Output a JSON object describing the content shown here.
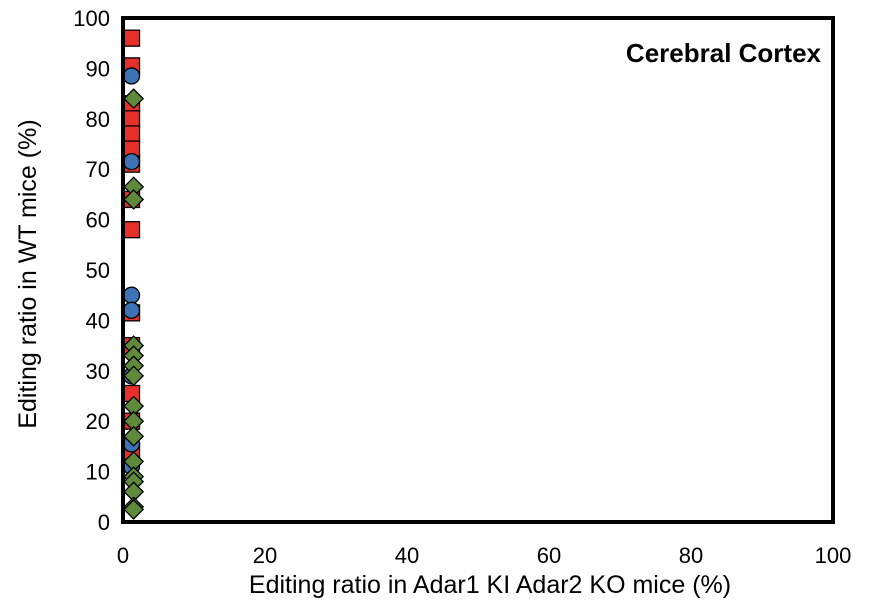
{
  "chart_data": {
    "type": "scatter",
    "title": "Cerebral Cortex",
    "xlabel": "Editing ratio in Adar1 KI Adar2 KO mice (%)",
    "ylabel": "Editing ratio in WT mice (%)",
    "xlim": [
      0,
      100
    ],
    "ylim": [
      0,
      100
    ],
    "x_ticks": [
      "0",
      "20",
      "40",
      "60",
      "80",
      "100"
    ],
    "y_ticks": [
      "0",
      "10",
      "20",
      "30",
      "40",
      "50",
      "60",
      "70",
      "80",
      "90",
      "100"
    ],
    "grid": false,
    "legend": "none",
    "series": [
      {
        "marker": "square",
        "color": "#e8302a",
        "x": [
          1.2,
          1.2,
          1.2,
          1.2,
          1.2,
          1.2,
          1.2,
          1.2,
          1.2,
          1.2,
          1.2,
          1.2,
          1.2,
          1.2
        ],
        "y": [
          96,
          90.5,
          83,
          80,
          77,
          74,
          71,
          64,
          58,
          41.5,
          35,
          25.5,
          20,
          14
        ]
      },
      {
        "marker": "circle",
        "color": "#3d72b4",
        "x": [
          1.2,
          1.2,
          1.2,
          1.2,
          1.2,
          1.2,
          1.2
        ],
        "y": [
          88.5,
          71.5,
          45,
          42,
          29,
          15.5,
          11
        ]
      },
      {
        "marker": "diamond",
        "color": "#5f8a3c",
        "x": [
          1.5,
          1.5,
          1.5,
          1.5,
          1.5,
          1.5,
          1.5,
          1.5,
          1.5,
          1.5,
          1.5,
          1.5,
          1.5,
          1.5,
          1.5,
          1.5
        ],
        "y": [
          84,
          66.5,
          64,
          35,
          33,
          31,
          29,
          23,
          20,
          17,
          12,
          9,
          8,
          6,
          3,
          2.5
        ]
      }
    ]
  }
}
